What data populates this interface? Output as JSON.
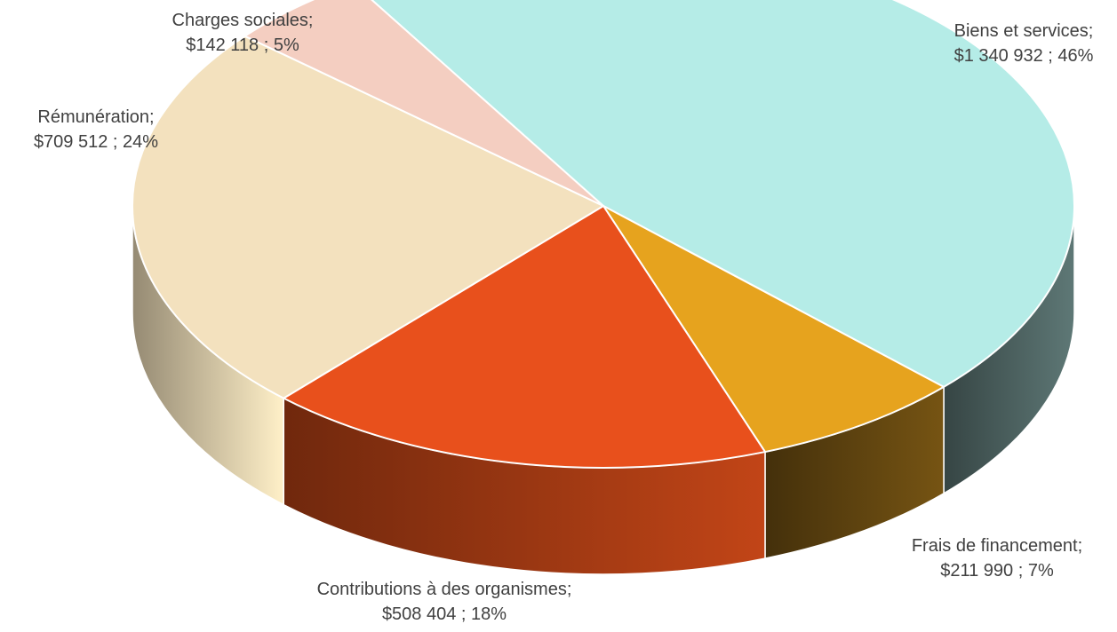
{
  "chart_data": {
    "type": "pie",
    "style": "3d-perspective",
    "title": "",
    "legend": "none",
    "series": [
      {
        "categories": [
          "Biens et services",
          "Frais de financement",
          "Contributions à des organismes",
          "Rémunération",
          "Charges sociales"
        ],
        "values": [
          1340932,
          211990,
          508404,
          709512,
          142118
        ],
        "percents": [
          46,
          7,
          18,
          24,
          5
        ],
        "value_labels": [
          "$1 340 932",
          "$211 990",
          "$508 404",
          "$709 512",
          "$142 118"
        ],
        "labels": [
          [
            "Biens et services;",
            "$1 340 932 ; 46%"
          ],
          [
            "Frais de financement;",
            "$211 990 ; 7%"
          ],
          [
            "Contributions à des organismes;",
            "$508 404 ; 18%"
          ],
          [
            "Rémunération;",
            "$709 512 ; 24%"
          ],
          [
            "Charges sociales;",
            "$142 118 ; 5%"
          ]
        ],
        "colors": [
          "#B5ECE7",
          "#E6A31E",
          "#E8501C",
          "#F3E1BE",
          "#F4CEC1"
        ],
        "side_colors": [
          "#4B605E",
          "#5E430F",
          "#9B3712",
          "#CFC0A0",
          "#D4ACA0"
        ]
      }
    ]
  }
}
